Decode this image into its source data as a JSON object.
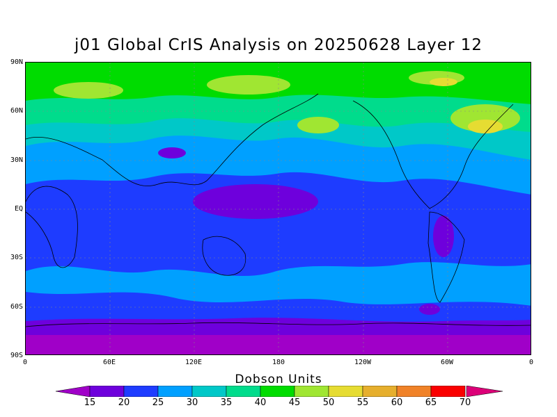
{
  "title": "j01 Global CrIS Analysis on 20250628 Layer 12",
  "lat_labels": [
    "90N",
    "60N",
    "30N",
    "EQ",
    "30S",
    "60S",
    "90S"
  ],
  "lon_labels": [
    "0",
    "60E",
    "120E",
    "180",
    "120W",
    "60W",
    "0"
  ],
  "colorbar": {
    "title": "Dobson Units",
    "levels": [
      "15",
      "20",
      "25",
      "30",
      "35",
      "40",
      "45",
      "50",
      "55",
      "60",
      "65",
      "70"
    ],
    "colors": [
      "#a000c8",
      "#6e00dc",
      "#1e3cff",
      "#00a0ff",
      "#00c8c8",
      "#00dc8c",
      "#00dc00",
      "#a0e632",
      "#e6dc32",
      "#e6af2d",
      "#f08228",
      "#fa0000",
      "#dc0078"
    ]
  },
  "field": {
    "background_color": "#1e3cff",
    "antarctic_color": "#a000c8",
    "arctic_color": "#00dc00",
    "tropical_low_color": "#6e00dc",
    "midlat_color": "#00a0ff",
    "high_color": "#a0e632",
    "peak_color": "#e6dc32"
  }
}
